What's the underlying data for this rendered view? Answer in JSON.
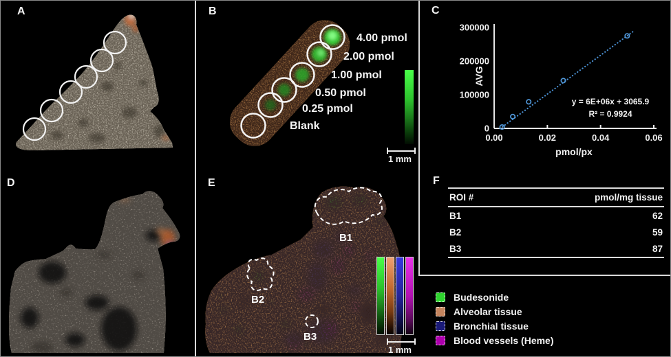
{
  "panels": {
    "a": "A",
    "b": "B",
    "c": "C",
    "d": "D",
    "e": "E",
    "f": "F"
  },
  "panelB": {
    "dose_labels": [
      "4.00 pmol",
      "2.00 pmol",
      "1.00 pmol",
      "0.50 pmol",
      "0.25 pmol",
      "Blank"
    ],
    "scalebar_label": "1 mm"
  },
  "chart_data": {
    "type": "scatter",
    "xlabel": "pmol/px",
    "ylabel": "AVG",
    "x": [
      0.003,
      0.007,
      0.013,
      0.026,
      0.05
    ],
    "y": [
      4000,
      35000,
      79000,
      142000,
      275000
    ],
    "xlim": [
      0,
      0.06
    ],
    "ylim": [
      0,
      300000
    ],
    "xticks": {
      "values": [
        0,
        0.02,
        0.04,
        0.06
      ],
      "labels": [
        "0.00",
        "0.02",
        "0.04",
        "0.06"
      ]
    },
    "yticks": {
      "values": [
        0,
        100000,
        200000,
        300000
      ],
      "labels": [
        "0",
        "100000",
        "200000",
        "300000"
      ]
    },
    "trendline": {
      "equation": "y = 6E+06x + 3065.9",
      "r_squared": "R² = 0.9924",
      "style": "dotted"
    },
    "marker": "open-circle",
    "marker_color": "#4f95d6",
    "line_color": "#4a8fd0",
    "grid": false,
    "legend_position": "none"
  },
  "panelE": {
    "roi_labels": [
      "B1",
      "B2",
      "B3"
    ],
    "scalebar_label": "1 mm"
  },
  "panelF": {
    "table": {
      "columns": [
        "ROI #",
        "pmol/mg tissue"
      ],
      "rows": [
        [
          "B1",
          "62"
        ],
        [
          "B2",
          "59"
        ],
        [
          "B3",
          "87"
        ]
      ]
    }
  },
  "legend": {
    "items": [
      {
        "label": "Budesonide",
        "color": "#2fd32f"
      },
      {
        "label": "Alveolar tissue",
        "color": "#c4845e"
      },
      {
        "label": "Bronchial tissue",
        "color": "#1a1a78"
      },
      {
        "label": "Blood vessels (Heme)",
        "color": "#ad00ad"
      }
    ]
  }
}
